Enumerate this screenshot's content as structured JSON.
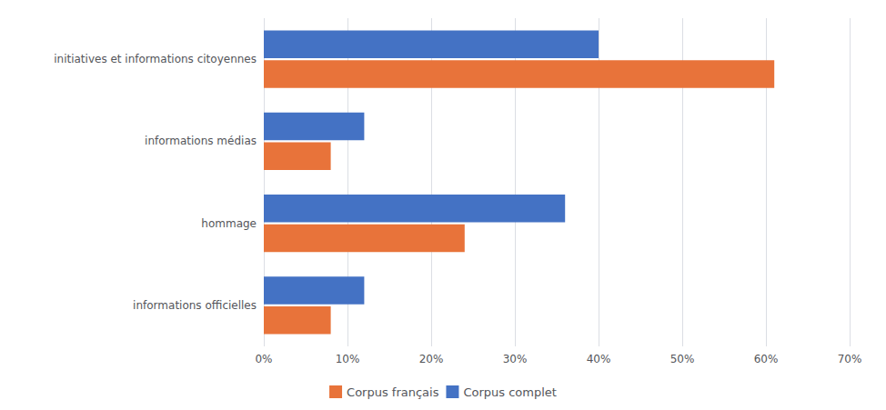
{
  "chart_data": {
    "type": "bar",
    "orientation": "horizontal",
    "categories": [
      "informations officielles",
      "hommage",
      "informations médias",
      "initiatives et informations citoyennes"
    ],
    "series": [
      {
        "name": "Corpus français",
        "color": "#E8733A",
        "values": [
          0.08,
          0.24,
          0.08,
          0.61
        ]
      },
      {
        "name": "Corpus complet",
        "color": "#4472C4",
        "values": [
          0.12,
          0.36,
          0.12,
          0.4
        ]
      }
    ],
    "xlim": [
      0,
      0.7
    ],
    "xticks": [
      {
        "value": 0.0,
        "label": "0%"
      },
      {
        "value": 0.1,
        "label": "10%"
      },
      {
        "value": 0.2,
        "label": "20%"
      },
      {
        "value": 0.3,
        "label": "30%"
      },
      {
        "value": 0.4,
        "label": "40%"
      },
      {
        "value": 0.5,
        "label": "50%"
      },
      {
        "value": 0.6,
        "label": "60%"
      },
      {
        "value": 0.7,
        "label": "70%"
      }
    ],
    "grid": true,
    "legend": "bottom"
  }
}
